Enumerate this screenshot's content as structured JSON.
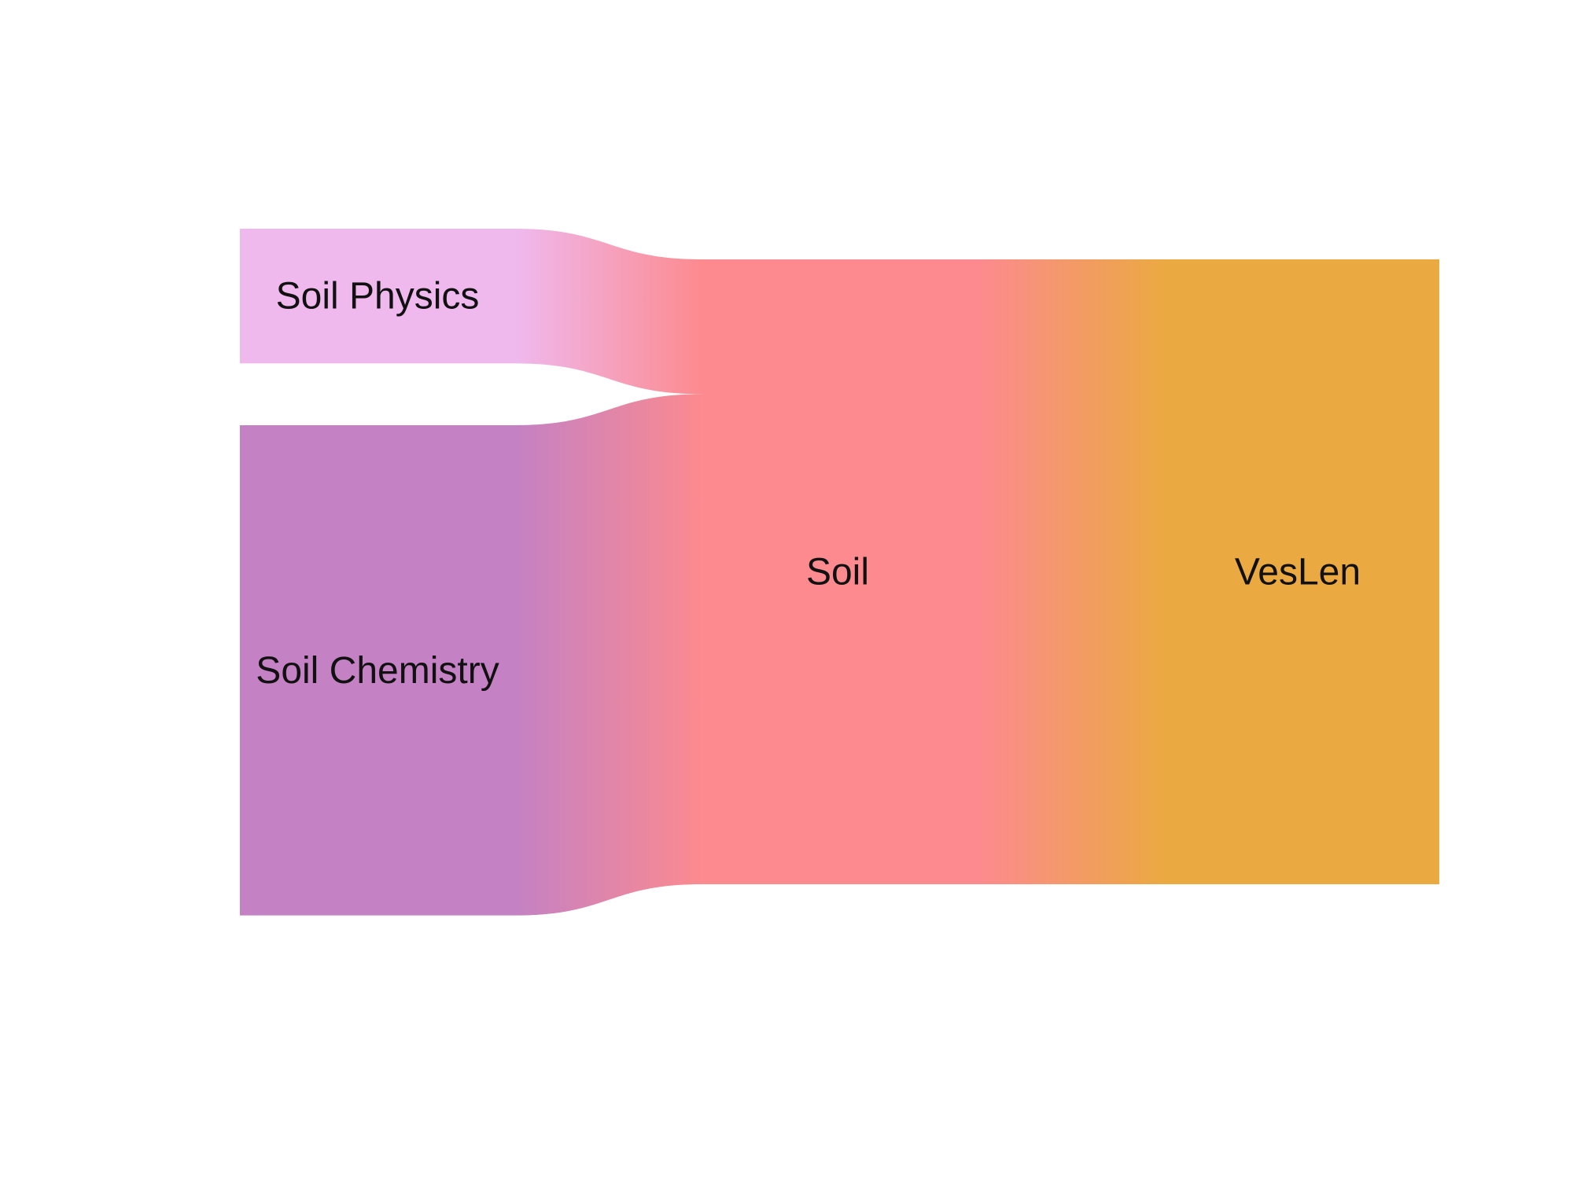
{
  "chart_data": {
    "type": "sankey",
    "nodes": [
      {
        "id": "soil_physics",
        "label": "Soil Physics",
        "color": "#EFB9EE",
        "column": 0
      },
      {
        "id": "soil_chemistry",
        "label": "Soil Chemistry",
        "color": "#C481C4",
        "column": 0
      },
      {
        "id": "soil",
        "label": "Soil",
        "color": "#FC8A8F",
        "column": 1
      },
      {
        "id": "veslen",
        "label": "VesLen",
        "color": "#EBA942",
        "column": 2
      }
    ],
    "links": [
      {
        "source": "soil_physics",
        "target": "soil",
        "value": 1
      },
      {
        "source": "soil_chemistry",
        "target": "soil",
        "value": 3.64
      },
      {
        "source": "soil",
        "target": "veslen",
        "value": 4.64
      }
    ]
  }
}
